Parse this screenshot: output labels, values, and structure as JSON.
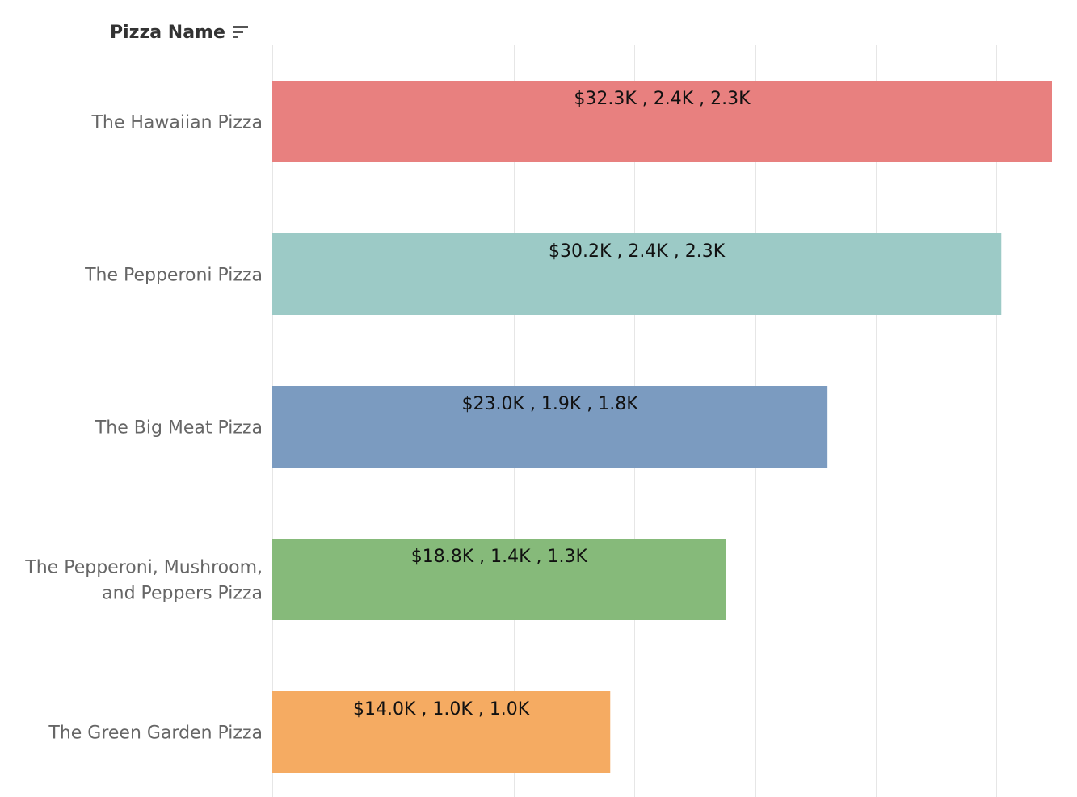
{
  "header": {
    "row_label": "Pizza Name",
    "sort_icon": "sort-descending-icon"
  },
  "chart_data": {
    "type": "bar",
    "orientation": "horizontal",
    "categories": [
      "The Hawaiian Pizza",
      "The Pepperoni Pizza",
      "The Big Meat Pizza",
      "The Pepperoni, Mushroom, and Peppers Pizza",
      "The Green Garden Pizza"
    ],
    "category_lines": [
      [
        "The Hawaiian Pizza"
      ],
      [
        "The Pepperoni Pizza"
      ],
      [
        "The Big Meat Pizza"
      ],
      [
        "The Pepperoni, Mushroom,",
        "and Peppers Pizza"
      ],
      [
        "The Green Garden Pizza"
      ]
    ],
    "values": [
      32.3,
      30.2,
      23.0,
      18.8,
      14.0
    ],
    "value_unit": "$K",
    "data_labels": [
      "$32.3K , 2.4K , 2.3K",
      "$30.2K , 2.4K , 2.3K",
      "$23.0K , 1.9K , 1.8K",
      "$18.8K , 1.4K , 1.3K",
      "$14.0K , 1.0K , 1.0K"
    ],
    "colors": [
      "#e8807f",
      "#9ccac6",
      "#7b9bc0",
      "#86ba7a",
      "#f5ab62"
    ],
    "xlim": [
      0,
      33.3
    ],
    "gridlines": [
      0,
      5,
      10,
      15,
      20,
      25,
      30
    ],
    "grid": true,
    "xlabel": "",
    "ylabel": ""
  }
}
